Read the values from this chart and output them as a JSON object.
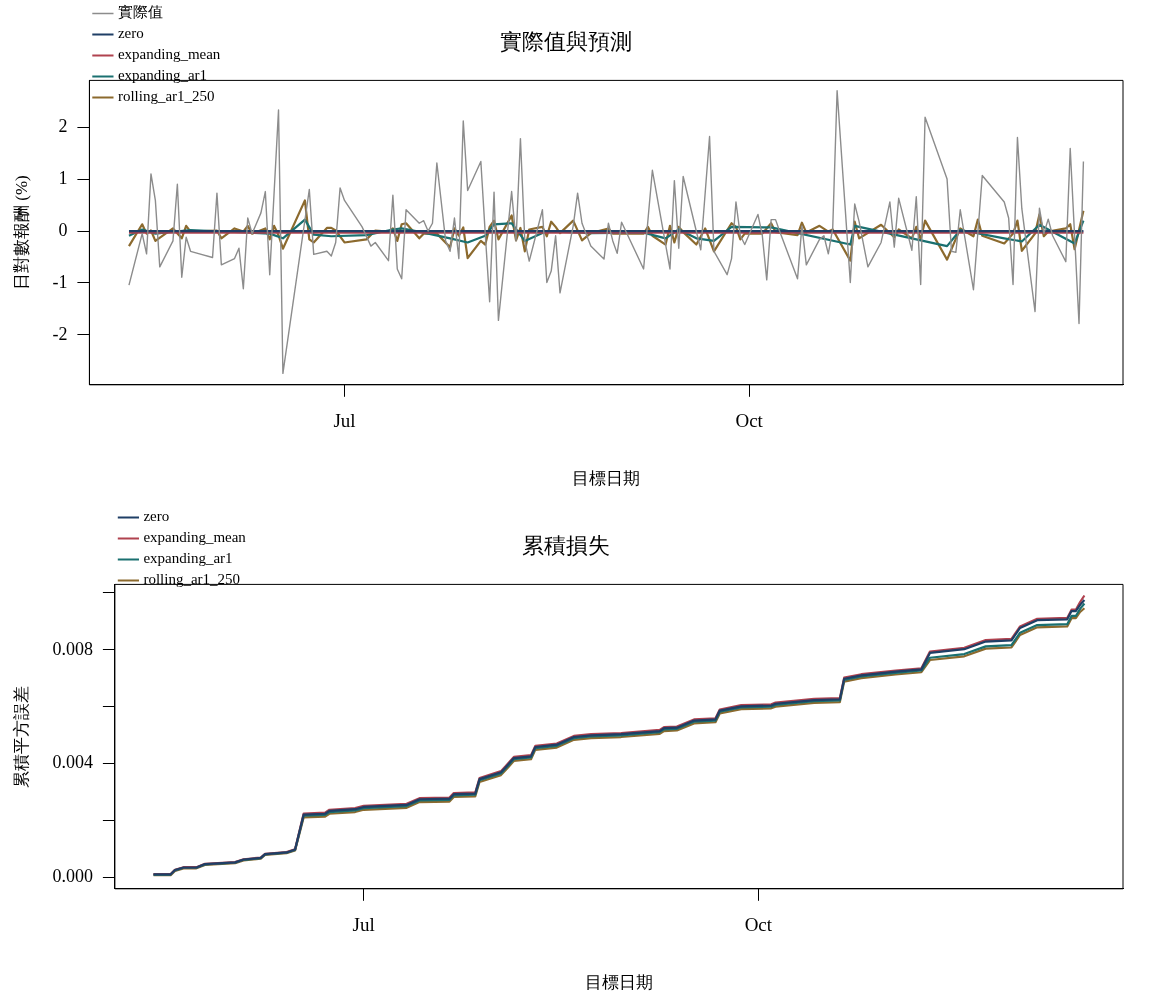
{
  "chart_data": [
    {
      "type": "line",
      "title": "實際值與預測",
      "xlabel": "目標日期",
      "ylabel": "日對數報酬 (%)",
      "legend": "top left",
      "xlim": [
        "--05-04",
        "--12-25"
      ],
      "xticks": [
        {
          "value": "--07-01",
          "label": "Jul"
        },
        {
          "value": "--10-01",
          "label": "Oct"
        }
      ],
      "ylim": [
        -2.96,
        2.9
      ],
      "yticks": [
        -2,
        -1,
        0,
        1,
        2
      ],
      "series": [
        {
          "name": "實際值",
          "color": "#8c8c8c",
          "x": [
            "--05-13",
            "--05-16",
            "--05-17",
            "--05-18",
            "--05-19",
            "--05-20",
            "--05-23",
            "--05-24",
            "--05-25",
            "--05-26",
            "--05-27",
            "--06-01",
            "--06-02",
            "--06-03",
            "--06-06",
            "--06-07",
            "--06-08",
            "--06-09",
            "--06-10",
            "--06-12",
            "--06-13",
            "--06-14",
            "--06-16",
            "--06-17",
            "--06-23",
            "--06-24",
            "--06-27",
            "--06-28",
            "--06-29",
            "--06-30",
            "--07-01",
            "--07-05",
            "--07-07",
            "--07-08",
            "--07-11",
            "--07-12",
            "--07-13",
            "--07-14",
            "--07-15",
            "--07-18",
            "--07-19",
            "--07-20",
            "--07-21",
            "--07-22",
            "--07-24",
            "--07-25",
            "--07-26",
            "--07-27",
            "--07-28",
            "--07-29",
            "--08-01",
            "--08-02",
            "--08-03",
            "--08-04",
            "--08-05",
            "--08-08",
            "--08-09",
            "--08-10",
            "--08-11",
            "--08-12",
            "--08-15",
            "--08-16",
            "--08-17",
            "--08-18",
            "--08-19",
            "--08-22",
            "--08-23",
            "--08-24",
            "--08-26",
            "--08-29",
            "--08-30",
            "--08-31",
            "--09-01",
            "--09-02",
            "--09-07",
            "--09-09",
            "--09-13",
            "--09-14",
            "--09-15",
            "--09-16",
            "--09-20",
            "--09-22",
            "--09-23",
            "--09-26",
            "--09-27",
            "--09-28",
            "--09-29",
            "--09-30",
            "--10-03",
            "--10-04",
            "--10-05",
            "--10-06",
            "--10-07",
            "--10-08",
            "--10-12",
            "--10-13",
            "--10-14",
            "--10-17",
            "--10-18",
            "--10-19",
            "--10-20",
            "--10-21",
            "--10-24",
            "--10-25",
            "--10-26",
            "--10-28",
            "--10-31",
            "--11-02",
            "--11-03",
            "--11-04",
            "--11-07",
            "--11-08",
            "--11-09",
            "--11-10",
            "--11-15",
            "--11-16",
            "--11-17",
            "--11-18",
            "--11-21",
            "--11-23",
            "--11-28",
            "--11-29",
            "--11-30",
            "--12-01",
            "--12-02",
            "--12-05",
            "--12-06",
            "--12-07",
            "--12-08",
            "--12-09",
            "--12-12",
            "--12-13",
            "--12-15",
            "--12-16"
          ],
          "values": [
            -1.04,
            -0.05,
            -0.44,
            1.1,
            0.59,
            -0.69,
            -0.19,
            0.9,
            -0.89,
            -0.12,
            -0.39,
            -0.51,
            0.73,
            -0.65,
            -0.53,
            -0.33,
            -1.11,
            0.25,
            -0.05,
            0.35,
            0.76,
            -0.84,
            2.33,
            -2.74,
            0.8,
            -0.45,
            -0.39,
            -0.48,
            -0.22,
            0.83,
            0.59,
            0.08,
            -0.29,
            -0.22,
            -0.57,
            0.69,
            -0.73,
            -0.92,
            0.41,
            0.15,
            0.2,
            0.0,
            0.15,
            1.31,
            -0.19,
            -0.39,
            0.25,
            -0.53,
            2.12,
            0.78,
            1.34,
            -0.05,
            -1.36,
            0.75,
            -1.72,
            0.76,
            -0.19,
            1.78,
            -0.19,
            -0.58,
            0.41,
            -0.99,
            -0.77,
            -0.09,
            -1.19,
            0.1,
            0.73,
            0.15,
            -0.29,
            -0.54,
            0.15,
            -0.19,
            -0.43,
            0.17,
            -0.73,
            1.17,
            -0.73,
            0.97,
            -0.33,
            1.05,
            -0.36,
            1.82,
            -0.39,
            -0.84,
            -0.53,
            0.56,
            -0.09,
            -0.26,
            0.32,
            -0.09,
            -0.94,
            0.22,
            0.22,
            -0.02,
            -0.92,
            0.1,
            -0.65,
            -0.16,
            -0.09,
            -0.44,
            0.05,
            2.7,
            -0.99,
            0.52,
            0.18,
            -0.69,
            -0.22,
            0.56,
            -0.31,
            0.63,
            -0.37,
            0.66,
            -1.03,
            2.19,
            1.0,
            -0.39,
            -0.41,
            0.41,
            -1.13,
            1.07,
            0.56,
            0.25,
            -1.03,
            1.8,
            0.43,
            -1.55,
            0.44,
            -0.05,
            0.23,
            -0.09,
            -0.59,
            1.59,
            -1.78,
            1.34
          ]
        },
        {
          "name": "zero",
          "color": "#1f3f66",
          "x": [
            "--05-13",
            "--12-16"
          ],
          "values": [
            0,
            0
          ]
        },
        {
          "name": "expanding_mean",
          "color": "#b0424f",
          "x": [
            "--05-13",
            "--12-16"
          ],
          "values": [
            -0.03,
            -0.03
          ]
        },
        {
          "name": "expanding_ar1",
          "color": "#1a7070",
          "x": [
            "--05-13",
            "--05-16",
            "--05-19",
            "--05-27",
            "--06-14",
            "--06-17",
            "--06-22",
            "--06-24",
            "--06-28",
            "--07-06",
            "--07-12",
            "--07-14",
            "--07-19",
            "--07-25",
            "--07-29",
            "--08-02",
            "--08-04",
            "--08-08",
            "--08-11",
            "--08-16",
            "--08-26",
            "--09-07",
            "--09-12",
            "--09-15",
            "--09-19",
            "--09-23",
            "--09-27",
            "--10-06",
            "--10-24",
            "--10-25",
            "--11-15",
            "--11-18",
            "--11-28",
            "--12-02",
            "--12-06",
            "--12-14",
            "--12-16"
          ],
          "values": [
            -0.09,
            0.03,
            -0.05,
            0.02,
            -0.05,
            -0.14,
            0.22,
            -0.07,
            -0.1,
            -0.08,
            0.03,
            0.05,
            -0.03,
            -0.14,
            -0.22,
            -0.09,
            0.13,
            0.15,
            -0.19,
            0.0,
            -0.04,
            -0.03,
            -0.14,
            0.03,
            -0.14,
            -0.19,
            0.08,
            0.07,
            -0.26,
            0.1,
            -0.29,
            0.02,
            -0.14,
            -0.2,
            0.12,
            -0.24,
            0.2
          ]
        },
        {
          "name": "rolling_ar1_250",
          "color": "#8c6a2e",
          "x": [
            "--05-13",
            "--05-16",
            "--05-17",
            "--05-18",
            "--05-19",
            "--05-23",
            "--05-25",
            "--05-26",
            "--05-27",
            "--06-02",
            "--06-03",
            "--06-06",
            "--06-08",
            "--06-09",
            "--06-10",
            "--06-13",
            "--06-14",
            "--06-15",
            "--06-16",
            "--06-17",
            "--06-22",
            "--06-23",
            "--06-24",
            "--06-27",
            "--06-28",
            "--06-29",
            "--07-01",
            "--07-06",
            "--07-08",
            "--07-11",
            "--07-12",
            "--07-13",
            "--07-14",
            "--07-15",
            "--07-18",
            "--07-19",
            "--07-20",
            "--07-21",
            "--07-22",
            "--07-25",
            "--07-26",
            "--07-27",
            "--07-28",
            "--07-29",
            "--08-01",
            "--08-02",
            "--08-03",
            "--08-04",
            "--08-05",
            "--08-08",
            "--08-09",
            "--08-10",
            "--08-11",
            "--08-12",
            "--08-15",
            "--08-16",
            "--08-17",
            "--08-18",
            "--08-19",
            "--08-22",
            "--08-24",
            "--08-26",
            "--08-30",
            "--08-31",
            "--09-07",
            "--09-08",
            "--09-09",
            "--09-12",
            "--09-13",
            "--09-14",
            "--09-15",
            "--09-16",
            "--09-19",
            "--09-21",
            "--09-23",
            "--09-27",
            "--09-28",
            "--09-29",
            "--09-30",
            "--10-04",
            "--10-06",
            "--10-07",
            "--10-12",
            "--10-13",
            "--10-14",
            "--10-17",
            "--10-19",
            "--10-20",
            "--10-24",
            "--10-25",
            "--10-26",
            "--10-31",
            "--11-03",
            "--11-04",
            "--11-07",
            "--11-08",
            "--11-09",
            "--11-10",
            "--11-15",
            "--11-18",
            "--11-21",
            "--11-22",
            "--11-23",
            "--11-28",
            "--11-30",
            "--12-01",
            "--12-02",
            "--12-05",
            "--12-06",
            "--12-07",
            "--12-08",
            "--12-12",
            "--12-13",
            "--12-14",
            "--12-16"
          ],
          "values": [
            -0.29,
            0.13,
            -0.05,
            0.01,
            -0.19,
            0.05,
            -0.14,
            0.1,
            -0.01,
            0.01,
            -0.14,
            0.05,
            -0.01,
            0.1,
            -0.05,
            0.05,
            -0.16,
            0.1,
            -0.08,
            -0.34,
            0.59,
            -0.16,
            -0.22,
            0.06,
            0.06,
            0.01,
            -0.22,
            -0.16,
            0.01,
            -0.01,
            0.05,
            -0.19,
            0.13,
            0.15,
            -0.14,
            -0.05,
            -0.05,
            -0.03,
            -0.05,
            -0.31,
            0.05,
            -0.09,
            0.07,
            -0.52,
            -0.19,
            -0.26,
            0.08,
            0.2,
            -0.16,
            0.3,
            -0.18,
            0.06,
            -0.39,
            0.03,
            0.08,
            -0.1,
            0.18,
            0.08,
            -0.04,
            0.2,
            -0.18,
            -0.04,
            0.05,
            -0.05,
            -0.05,
            0.08,
            -0.09,
            -0.26,
            0.1,
            -0.22,
            0.08,
            -0.02,
            -0.26,
            0.05,
            -0.39,
            0.15,
            0.08,
            -0.16,
            -0.05,
            -0.05,
            0.15,
            -0.02,
            -0.08,
            0.16,
            -0.03,
            0.1,
            -0.01,
            0.03,
            -0.57,
            0.18,
            -0.14,
            0.12,
            -0.12,
            0.03,
            -0.14,
            0.08,
            -0.16,
            0.2,
            -0.55,
            0.05,
            -0.1,
            0.22,
            -0.09,
            -0.24,
            -0.05,
            0.2,
            -0.38,
            -0.05,
            0.32,
            -0.1,
            -0.01,
            0.05,
            0.13,
            -0.35,
            0.39
          ]
        }
      ]
    },
    {
      "type": "line",
      "title": "累積損失",
      "xlabel": "目標日期",
      "ylabel": "累積平方誤差",
      "legend": "top left",
      "xlim": [
        "--05-04",
        "--12-25"
      ],
      "xticks": [
        {
          "value": "--07-01",
          "label": "Jul"
        },
        {
          "value": "--10-01",
          "label": "Oct"
        }
      ],
      "ylim": [
        -0.00041,
        0.0103
      ],
      "yticks": [
        {
          "value": 0,
          "label": "0.000"
        },
        {
          "value": 0.002,
          "label": null
        },
        {
          "value": 0.004,
          "label": "0.004"
        },
        {
          "value": 0.006,
          "label": null
        },
        {
          "value": 0.008,
          "label": "0.008"
        },
        {
          "value": 0.01,
          "label": null
        }
      ],
      "x": [
        "--05-13",
        "--05-17",
        "--05-18",
        "--05-20",
        "--05-23",
        "--05-25",
        "--06-01",
        "--06-03",
        "--06-07",
        "--06-08",
        "--06-13",
        "--06-15",
        "--06-17",
        "--06-22",
        "--06-23",
        "--06-29",
        "--07-01",
        "--07-11",
        "--07-14",
        "--07-21",
        "--07-22",
        "--07-27",
        "--07-28",
        "--08-02",
        "--08-03",
        "--08-05",
        "--08-09",
        "--08-10",
        "--08-15",
        "--08-19",
        "--08-23",
        "--08-30",
        "--09-08",
        "--09-09",
        "--09-12",
        "--09-16",
        "--09-21",
        "--09-22",
        "--09-27",
        "--10-04",
        "--10-05",
        "--10-14",
        "--10-20",
        "--10-21",
        "--10-25",
        "--11-02",
        "--11-08",
        "--11-10",
        "--11-18",
        "--11-23",
        "--11-29",
        "--12-01",
        "--12-05",
        "--12-12",
        "--12-13",
        "--12-14",
        "--12-15",
        "--12-16"
      ],
      "series": [
        {
          "name": "zero",
          "color": "#1f3f66",
          "values": [
            0.0001,
            0.0001,
            0.00025,
            0.00034,
            0.00034,
            0.00046,
            0.00052,
            0.00062,
            0.00068,
            0.00081,
            0.00087,
            0.00097,
            0.0022,
            0.00223,
            0.00233,
            0.00239,
            0.00247,
            0.00254,
            0.00274,
            0.00276,
            0.00292,
            0.00294,
            0.00345,
            0.00369,
            0.00385,
            0.00419,
            0.00425,
            0.00458,
            0.00466,
            0.00493,
            0.00499,
            0.00503,
            0.00514,
            0.00524,
            0.00526,
            0.00551,
            0.00555,
            0.00586,
            0.00601,
            0.00604,
            0.0061,
            0.00623,
            0.00626,
            0.00698,
            0.0071,
            0.00723,
            0.00731,
            0.00789,
            0.00802,
            0.00829,
            0.00833,
            0.00877,
            0.00904,
            0.00907,
            0.00936,
            0.00936,
            0.00958,
            0.00975
          ]
        },
        {
          "name": "expanding_mean",
          "color": "#b0424f",
          "values": [
            0.00011,
            0.00011,
            0.00026,
            0.00035,
            0.00035,
            0.00047,
            0.00053,
            0.00063,
            0.00069,
            0.00082,
            0.00088,
            0.00098,
            0.00224,
            0.00227,
            0.00237,
            0.00243,
            0.00251,
            0.00258,
            0.00278,
            0.0028,
            0.00296,
            0.00298,
            0.00349,
            0.00373,
            0.00389,
            0.00423,
            0.00429,
            0.00462,
            0.0047,
            0.00497,
            0.00503,
            0.00507,
            0.00518,
            0.00528,
            0.0053,
            0.00555,
            0.00559,
            0.0059,
            0.00605,
            0.00608,
            0.00614,
            0.00627,
            0.0063,
            0.00702,
            0.00714,
            0.00727,
            0.00735,
            0.00794,
            0.00807,
            0.00834,
            0.00838,
            0.00882,
            0.00909,
            0.00912,
            0.00941,
            0.00941,
            0.00968,
            0.00991
          ]
        },
        {
          "name": "expanding_ar1",
          "color": "#1a7070",
          "values": [
            9e-05,
            9e-05,
            0.00024,
            0.00033,
            0.00033,
            0.00045,
            0.00051,
            0.00061,
            0.00067,
            0.0008,
            0.00086,
            0.00096,
            0.00216,
            0.00219,
            0.00229,
            0.00235,
            0.00243,
            0.0025,
            0.0027,
            0.00272,
            0.00288,
            0.0029,
            0.00341,
            0.00365,
            0.00381,
            0.00415,
            0.00421,
            0.00454,
            0.00462,
            0.00489,
            0.00495,
            0.00499,
            0.0051,
            0.0052,
            0.00522,
            0.00547,
            0.00551,
            0.00582,
            0.00597,
            0.006,
            0.00606,
            0.00619,
            0.00622,
            0.00694,
            0.00706,
            0.00719,
            0.00727,
            0.00772,
            0.00785,
            0.00812,
            0.00816,
            0.0086,
            0.00887,
            0.0089,
            0.00919,
            0.00919,
            0.00944,
            0.00963
          ]
        },
        {
          "name": "rolling_ar1_250",
          "color": "#8c6a2e",
          "values": [
            7e-05,
            7e-05,
            0.00022,
            0.00031,
            0.00031,
            0.00043,
            0.00049,
            0.00059,
            0.00065,
            0.00078,
            0.00084,
            0.00094,
            0.0021,
            0.00213,
            0.00223,
            0.00229,
            0.00237,
            0.00244,
            0.00264,
            0.00266,
            0.00282,
            0.00284,
            0.00335,
            0.00359,
            0.00375,
            0.00409,
            0.00415,
            0.00448,
            0.00456,
            0.00483,
            0.00489,
            0.00493,
            0.00504,
            0.00514,
            0.00516,
            0.00541,
            0.00545,
            0.00576,
            0.00591,
            0.00594,
            0.006,
            0.00613,
            0.00616,
            0.00688,
            0.007,
            0.00713,
            0.00721,
            0.00764,
            0.00777,
            0.00804,
            0.00808,
            0.00852,
            0.00879,
            0.00882,
            0.00911,
            0.00911,
            0.00933,
            0.00946
          ]
        }
      ]
    }
  ]
}
